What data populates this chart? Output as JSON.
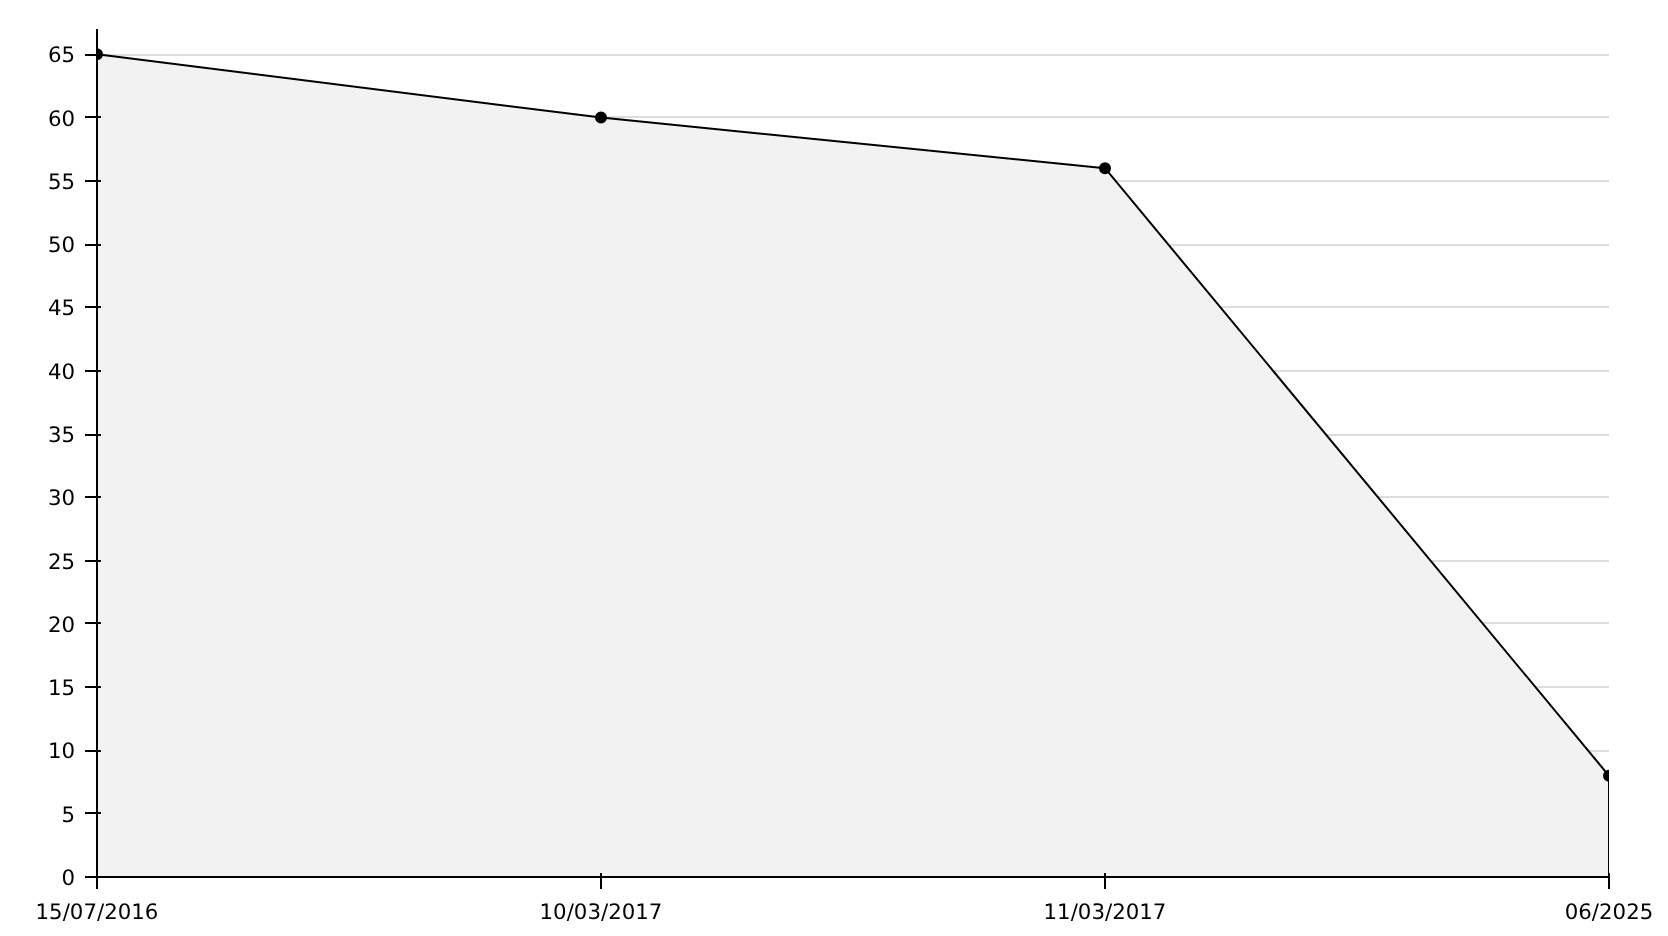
{
  "chart_data": {
    "type": "area",
    "categories": [
      "15/07/2016",
      "10/03/2017",
      "11/03/2017",
      "06/2025"
    ],
    "series": [
      {
        "color": "#000000",
        "values": [
          65,
          60,
          56,
          8
        ]
      }
    ],
    "ylim": [
      0,
      67
    ],
    "yticks": [
      0,
      5,
      10,
      15,
      20,
      25,
      30,
      35,
      40,
      45,
      50,
      55,
      60,
      65
    ],
    "grid": "y",
    "marker": "circle",
    "line_style": "solid"
  }
}
